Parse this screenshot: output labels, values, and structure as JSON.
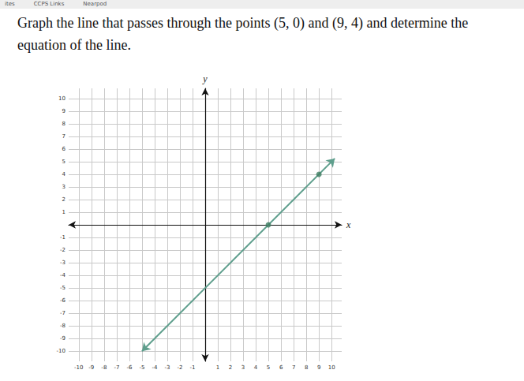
{
  "browser_tabs": [
    "ites",
    "CCPS Links",
    "Nearpod"
  ],
  "question": [
    "Graph the line that passes through the points (5, 0) and (9, 4) and determine the",
    "equation of the line."
  ],
  "chart_data": {
    "type": "line",
    "x_label": "x",
    "y_label": "y",
    "xlim": [
      -10.8,
      10.8
    ],
    "ylim": [
      -10.8,
      10.8
    ],
    "xticks": [
      -10,
      -9,
      -8,
      -7,
      -6,
      -5,
      -4,
      -3,
      -2,
      -1,
      1,
      2,
      3,
      4,
      5,
      6,
      7,
      8,
      9,
      10
    ],
    "yticks": [
      -10,
      -9,
      -8,
      -7,
      -6,
      -5,
      -4,
      -3,
      -2,
      -1,
      1,
      2,
      3,
      4,
      5,
      6,
      7,
      8,
      9,
      10
    ],
    "grid": true,
    "series": [
      {
        "type": "line",
        "x": [
          -5,
          10.25
        ],
        "values": [
          -10,
          5.25
        ],
        "color": "#5e9e8c",
        "line_style": "solid"
      },
      {
        "type": "scatter",
        "x": [
          5,
          9
        ],
        "values": [
          0,
          4
        ],
        "color": "#3e7d62",
        "marker": "circle"
      }
    ]
  }
}
